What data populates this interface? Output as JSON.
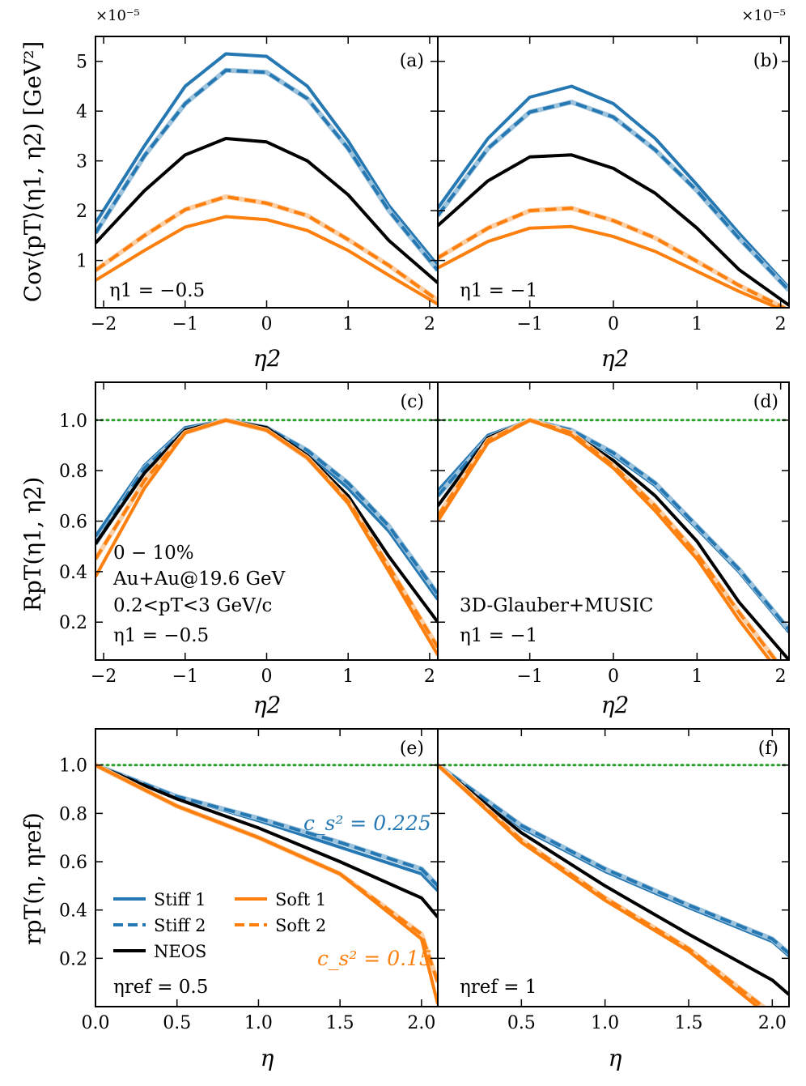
{
  "colors": {
    "stiff": "#2678b2",
    "stiff_light": "#9ec3dd",
    "soft": "#fd7f0e",
    "soft_light": "#fbd0a7",
    "neos": "#000000",
    "ref": "#2ca02c"
  },
  "legend": [
    {
      "key": "stiff1",
      "label": "Stiff 1"
    },
    {
      "key": "soft1",
      "label": "Soft 1"
    },
    {
      "key": "stiff2",
      "label": "Stiff 2"
    },
    {
      "key": "soft2",
      "label": "Soft 2"
    },
    {
      "key": "neos",
      "label": "NEOS"
    }
  ],
  "chart_data": [
    {
      "id": "a",
      "type": "line",
      "panel_label": "(a)",
      "ylabel": "Cov⟨pT⟩(η1, η2) [GeV²]",
      "xlabel": "η2",
      "scale_label": "×10⁻⁵",
      "xlim": [
        -2.1,
        2.1
      ],
      "ylim": [
        0.05,
        5.5
      ],
      "xticks": [
        -2,
        -1,
        0,
        1,
        2
      ],
      "yticks": [
        1,
        2,
        3,
        4,
        5
      ],
      "annotation": "η1 = −0.5",
      "x": [
        -2.1,
        -1.5,
        -1.0,
        -0.5,
        0.0,
        0.5,
        1.0,
        1.5,
        2.1
      ],
      "series": [
        {
          "key": "stiff1",
          "values": [
            1.75,
            3.3,
            4.5,
            5.15,
            5.1,
            4.5,
            3.4,
            2.1,
            0.9
          ]
        },
        {
          "key": "stiff2",
          "values": [
            1.55,
            3.1,
            4.15,
            4.82,
            4.78,
            4.25,
            3.25,
            2.0,
            0.8
          ]
        },
        {
          "key": "neos",
          "values": [
            1.35,
            2.4,
            3.12,
            3.45,
            3.38,
            3.0,
            2.32,
            1.4,
            0.55
          ]
        },
        {
          "key": "soft2",
          "values": [
            0.8,
            1.5,
            2.02,
            2.28,
            2.15,
            1.9,
            1.42,
            0.9,
            0.2
          ]
        },
        {
          "key": "soft1",
          "values": [
            0.6,
            1.2,
            1.67,
            1.88,
            1.82,
            1.6,
            1.2,
            0.7,
            0.12
          ]
        }
      ]
    },
    {
      "id": "b",
      "type": "line",
      "panel_label": "(b)",
      "xlabel": "η2",
      "scale_label": "×10⁻⁵",
      "xlim": [
        -2.1,
        2.1
      ],
      "ylim": [
        0.05,
        5.5
      ],
      "xticks": [
        -1,
        0,
        1,
        2
      ],
      "yticks": [
        1,
        2,
        3,
        4,
        5
      ],
      "annotation": "η1 = −1",
      "x": [
        -2.1,
        -1.5,
        -1.0,
        -0.5,
        0.0,
        0.5,
        1.0,
        1.5,
        2.1
      ],
      "series": [
        {
          "key": "stiff1",
          "values": [
            2.05,
            3.45,
            4.28,
            4.5,
            4.15,
            3.45,
            2.52,
            1.55,
            0.45
          ]
        },
        {
          "key": "stiff2",
          "values": [
            1.9,
            3.25,
            3.98,
            4.18,
            3.88,
            3.22,
            2.4,
            1.45,
            0.4
          ]
        },
        {
          "key": "neos",
          "values": [
            1.7,
            2.6,
            3.08,
            3.12,
            2.85,
            2.35,
            1.65,
            0.82,
            0.1
          ]
        },
        {
          "key": "soft2",
          "values": [
            1.05,
            1.65,
            2.0,
            2.05,
            1.8,
            1.45,
            0.98,
            0.5,
            0.0
          ]
        },
        {
          "key": "soft1",
          "values": [
            0.85,
            1.38,
            1.65,
            1.68,
            1.48,
            1.18,
            0.78,
            0.38,
            -0.05
          ]
        }
      ]
    },
    {
      "id": "c",
      "type": "line",
      "panel_label": "(c)",
      "ylabel": "RpT(η1, η2)",
      "xlabel": "η2",
      "xlim": [
        -2.1,
        2.1
      ],
      "ylim": [
        0.05,
        1.15
      ],
      "xticks": [
        -2,
        -1,
        0,
        1,
        2
      ],
      "yticks": [
        0.2,
        0.4,
        0.6,
        0.8,
        1.0
      ],
      "ref_line": 1.0,
      "annotations": [
        "0 − 10%",
        "Au+Au@19.6 GeV",
        "0.2<pT<3 GeV/c",
        "η1 = −0.5"
      ],
      "x": [
        -2.1,
        -1.5,
        -1.0,
        -0.5,
        0.0,
        0.5,
        1.0,
        1.5,
        2.1
      ],
      "series": [
        {
          "key": "stiff1",
          "values": [
            0.54,
            0.82,
            0.97,
            1.0,
            0.97,
            0.87,
            0.73,
            0.56,
            0.29
          ]
        },
        {
          "key": "stiff2",
          "values": [
            0.51,
            0.81,
            0.96,
            1.0,
            0.97,
            0.88,
            0.75,
            0.58,
            0.31
          ]
        },
        {
          "key": "neos",
          "values": [
            0.51,
            0.79,
            0.96,
            1.0,
            0.97,
            0.86,
            0.7,
            0.46,
            0.2
          ]
        },
        {
          "key": "soft2",
          "values": [
            0.45,
            0.76,
            0.95,
            1.0,
            0.96,
            0.85,
            0.68,
            0.42,
            0.1
          ]
        },
        {
          "key": "soft1",
          "values": [
            0.38,
            0.73,
            0.95,
            1.0,
            0.96,
            0.85,
            0.67,
            0.4,
            0.07
          ]
        }
      ]
    },
    {
      "id": "d",
      "type": "line",
      "panel_label": "(d)",
      "xlabel": "η2",
      "xlim": [
        -2.1,
        2.1
      ],
      "ylim": [
        0.05,
        1.15
      ],
      "xticks": [
        -1,
        0,
        1,
        2
      ],
      "yticks": [
        0.2,
        0.4,
        0.6,
        0.8,
        1.0
      ],
      "ref_line": 1.0,
      "annotations": [
        "3D-Glauber+MUSIC",
        "η1 = −1"
      ],
      "x": [
        -2.1,
        -1.5,
        -1.0,
        -0.5,
        0.0,
        0.5,
        1.0,
        1.5,
        2.1
      ],
      "series": [
        {
          "key": "stiff1",
          "values": [
            0.72,
            0.94,
            1.0,
            0.96,
            0.86,
            0.74,
            0.57,
            0.4,
            0.16
          ]
        },
        {
          "key": "stiff2",
          "values": [
            0.7,
            0.93,
            1.0,
            0.96,
            0.87,
            0.75,
            0.58,
            0.41,
            0.17
          ]
        },
        {
          "key": "neos",
          "values": [
            0.66,
            0.93,
            1.0,
            0.95,
            0.84,
            0.7,
            0.52,
            0.28,
            0.05
          ]
        },
        {
          "key": "soft2",
          "values": [
            0.62,
            0.92,
            1.0,
            0.95,
            0.82,
            0.66,
            0.47,
            0.24,
            -0.02
          ]
        },
        {
          "key": "soft1",
          "values": [
            0.6,
            0.91,
            1.0,
            0.94,
            0.81,
            0.64,
            0.45,
            0.21,
            -0.05
          ]
        }
      ]
    },
    {
      "id": "e",
      "type": "line",
      "panel_label": "(e)",
      "ylabel": "rpT(η, ηref)",
      "xlabel": "η",
      "xlim": [
        0.0,
        2.1
      ],
      "ylim": [
        0.0,
        1.15
      ],
      "xticks": [
        0.0,
        0.5,
        1.0,
        1.5,
        2.0
      ],
      "yticks": [
        0.2,
        0.4,
        0.6,
        0.8,
        1.0
      ],
      "ref_line": 1.0,
      "annotation": "ηref = 0.5",
      "cs_labels": [
        "c_s² = 0.225",
        "c_s² = 0.15"
      ],
      "x": [
        0.0,
        0.5,
        1.0,
        1.5,
        2.0,
        2.1
      ],
      "series": [
        {
          "key": "stiff1",
          "values": [
            1.0,
            0.87,
            0.77,
            0.66,
            0.55,
            0.48
          ]
        },
        {
          "key": "stiff2",
          "values": [
            1.0,
            0.87,
            0.78,
            0.68,
            0.57,
            0.5
          ]
        },
        {
          "key": "neos",
          "values": [
            1.0,
            0.86,
            0.74,
            0.6,
            0.45,
            0.37
          ]
        },
        {
          "key": "soft2",
          "values": [
            1.0,
            0.83,
            0.7,
            0.55,
            0.3,
            0.1
          ]
        },
        {
          "key": "soft1",
          "values": [
            1.0,
            0.83,
            0.7,
            0.55,
            0.28,
            0.01
          ]
        }
      ]
    },
    {
      "id": "f",
      "type": "line",
      "panel_label": "(f)",
      "xlabel": "η",
      "xlim": [
        0.0,
        2.1
      ],
      "ylim": [
        0.0,
        1.15
      ],
      "xticks": [
        0.5,
        1.0,
        1.5,
        2.0
      ],
      "yticks": [
        0.2,
        0.4,
        0.6,
        0.8,
        1.0
      ],
      "ref_line": 1.0,
      "annotation": "ηref = 1",
      "x": [
        0.0,
        0.5,
        1.0,
        1.5,
        2.0,
        2.1
      ],
      "series": [
        {
          "key": "stiff1",
          "values": [
            1.0,
            0.74,
            0.56,
            0.41,
            0.27,
            0.21
          ]
        },
        {
          "key": "stiff2",
          "values": [
            1.0,
            0.75,
            0.57,
            0.42,
            0.28,
            0.22
          ]
        },
        {
          "key": "neos",
          "values": [
            1.0,
            0.72,
            0.5,
            0.3,
            0.11,
            0.05
          ]
        },
        {
          "key": "soft2",
          "values": [
            1.0,
            0.69,
            0.45,
            0.24,
            -0.03,
            -0.08
          ]
        },
        {
          "key": "soft1",
          "values": [
            1.0,
            0.68,
            0.44,
            0.23,
            -0.05,
            -0.1
          ]
        }
      ]
    }
  ]
}
